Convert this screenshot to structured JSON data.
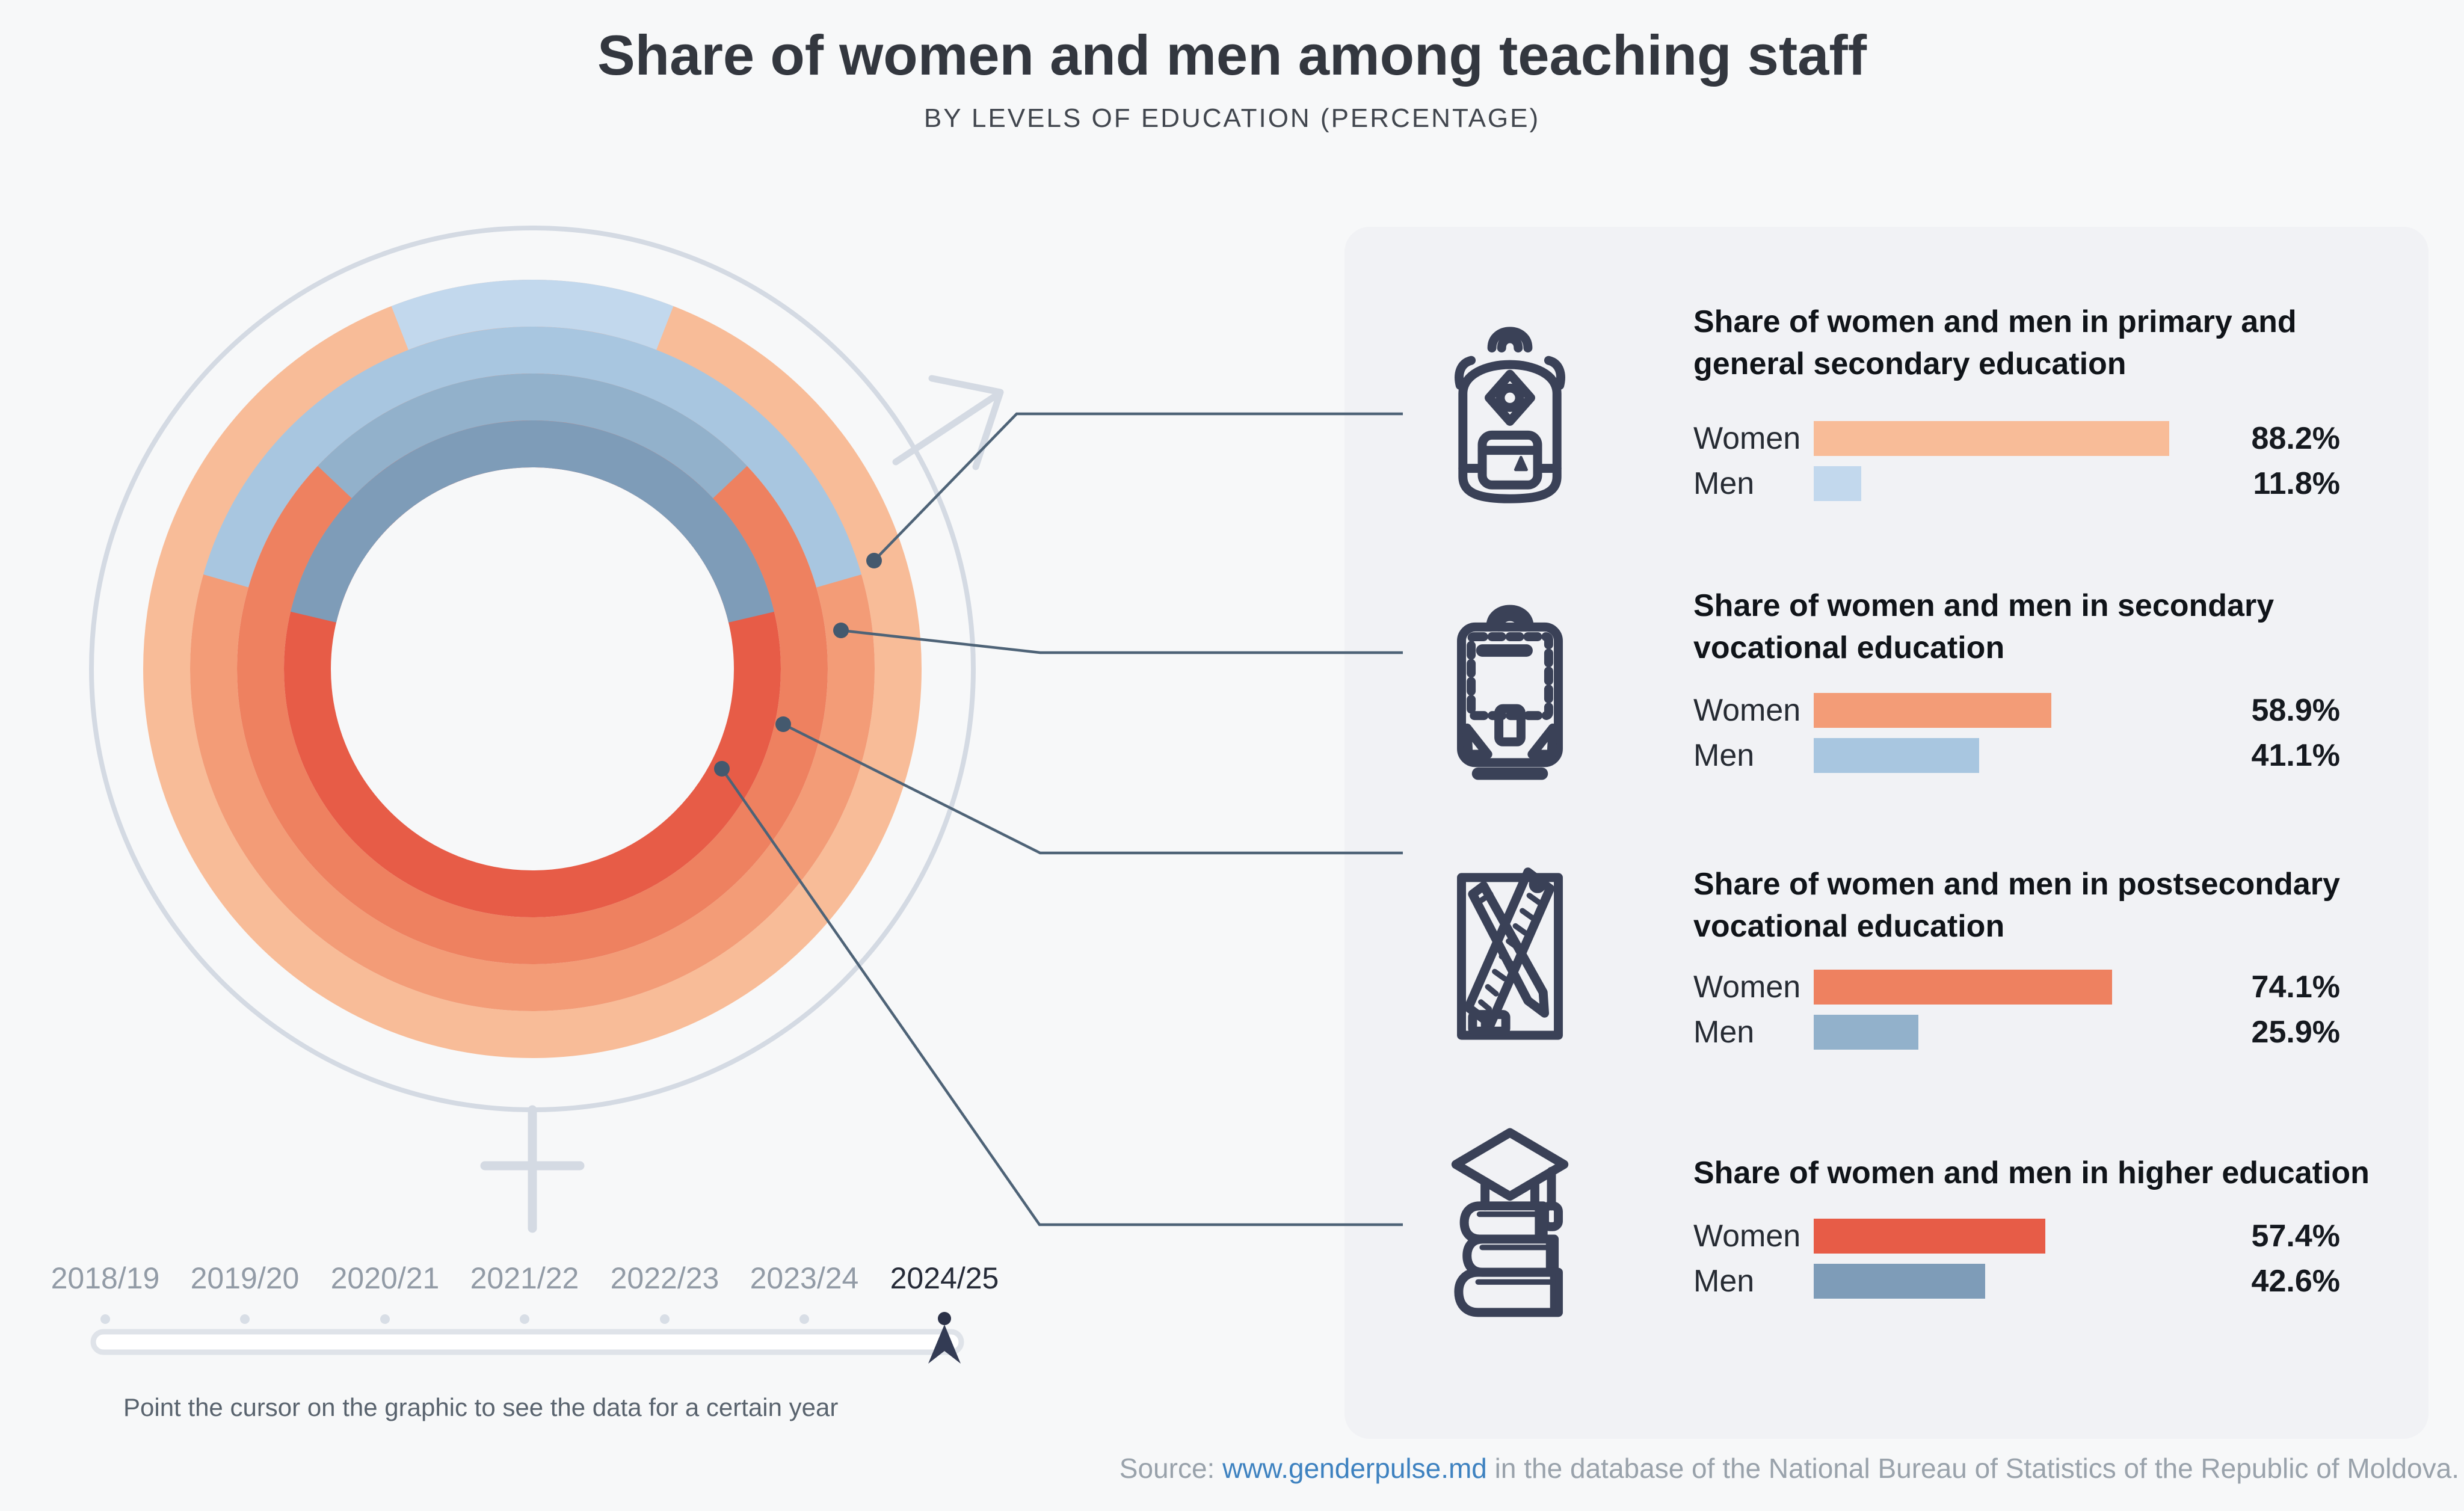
{
  "header": {
    "title": "Share of women and men among teaching staff",
    "subtitle": "BY LEVELS OF EDUCATION (PERCENTAGE)"
  },
  "chart_data": {
    "type": "donut-rings",
    "description": "Four concentric rings, one per education level (outermost to innermost). Each ring splits into women (warm color) and men (blue) shares; the men segment is centered at 12 o'clock. Values shown are for the academic year 2024/25.",
    "year_shown": "2024/25",
    "unit": "%",
    "levels": [
      {
        "level": "Primary and general secondary education",
        "ring": "outermost",
        "women": 88.2,
        "men": 11.8
      },
      {
        "level": "Secondary vocational education",
        "ring": "second",
        "women": 58.9,
        "men": 41.1
      },
      {
        "level": "Postsecondary vocational education",
        "ring": "third",
        "women": 74.1,
        "men": 25.9
      },
      {
        "level": "Higher education",
        "ring": "innermost",
        "women": 57.4,
        "men": 42.6
      }
    ],
    "colors": {
      "women": [
        "#F8BC98",
        "#F39C77",
        "#EE8160",
        "#E75C47"
      ],
      "men": [
        "#C2D8ED",
        "#A8C6E0",
        "#92B1CB",
        "#7E9CB8"
      ]
    },
    "legend_position": "right-panel",
    "grid": false
  },
  "panels": [
    {
      "icon": "backpack-icon",
      "title_lines": [
        "Share of women and men in primary and",
        "general secondary education"
      ],
      "women_value": "88.2%",
      "men_value": "11.8%"
    },
    {
      "icon": "briefcase-icon",
      "title_lines": [
        "Share of women and men in secondary",
        "vocational education"
      ],
      "women_value": "58.9%",
      "men_value": "41.1%"
    },
    {
      "icon": "pencil-ruler-icon",
      "title_lines": [
        "Share of women and men in postsecondary",
        "vocational education"
      ],
      "women_value": "74.1%",
      "men_value": "25.9%"
    },
    {
      "icon": "books-graduation-cap-icon",
      "title_lines": [
        "Share of women and men in higher education",
        ""
      ],
      "women_value": "57.4%",
      "men_value": "42.6%"
    }
  ],
  "bar_labels": {
    "women": "Women",
    "men": "Men"
  },
  "timeline": {
    "years": [
      "2018/19",
      "2019/20",
      "2020/21",
      "2021/22",
      "2022/23",
      "2023/24",
      "2024/25"
    ],
    "active_year": "2024/25",
    "hint": "Point the cursor on the graphic to see the data for a certain year"
  },
  "source": {
    "prefix": "Source: ",
    "link_text": "www.genderpulse.md",
    "suffix": " in the database of the National Bureau of Statistics of the Republic of Moldova."
  }
}
